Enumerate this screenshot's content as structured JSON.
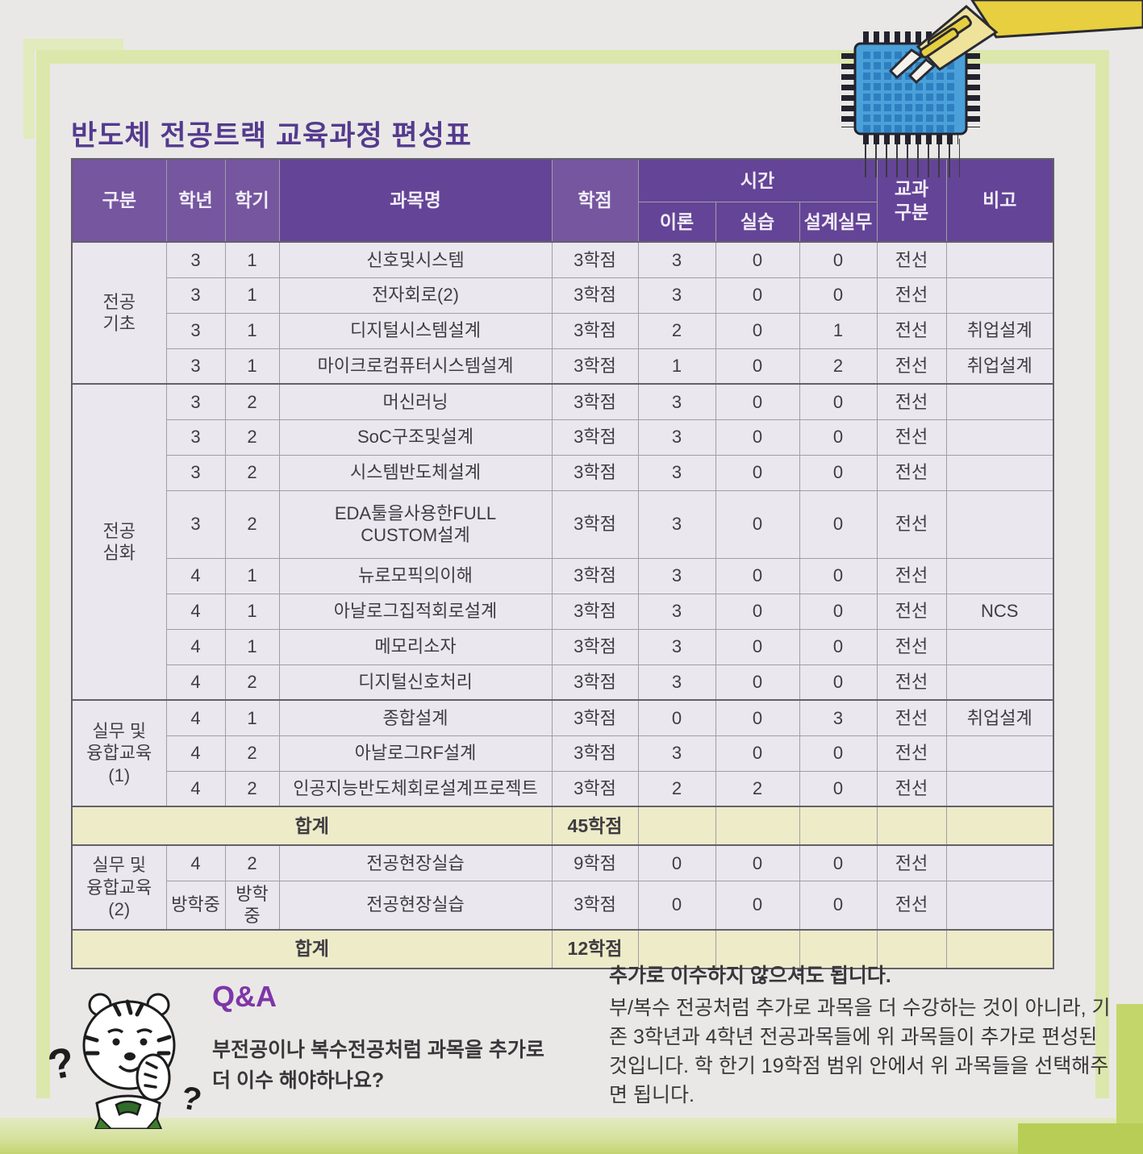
{
  "page": {
    "title": "반도체 전공트랙 교육과정 편성표"
  },
  "colors": {
    "header_purple": "#644496",
    "header_purple_light": "#75569f",
    "title_purple": "#533a8e",
    "qa_purple": "#7e36a8",
    "frame_green": "#dce7ac",
    "total_row_cream": "#eeebc9",
    "chip_blue": "#4aa0d8",
    "arm_yellow": "#e7cf3f"
  },
  "illustrations": {
    "chip": "microchip-with-robot-arm-illustration",
    "mascot": "tiger-mascot-with-question-marks"
  },
  "table": {
    "headers": {
      "category": "구분",
      "year": "학년",
      "semester": "학기",
      "course": "과목명",
      "credits": "학점",
      "hours": "시간",
      "theory": "이론",
      "practice": "실습",
      "design": "설계실무",
      "course_type": "교과\n구분",
      "note": "비고"
    },
    "sections": [
      {
        "kind": "group",
        "category": "전공\n기초",
        "rows": [
          {
            "year": "3",
            "semester": "1",
            "course": "신호및시스템",
            "credits": "3학점",
            "theory": "3",
            "practice": "0",
            "design": "0",
            "type": "전선",
            "note": ""
          },
          {
            "year": "3",
            "semester": "1",
            "course": "전자회로(2)",
            "credits": "3학점",
            "theory": "3",
            "practice": "0",
            "design": "0",
            "type": "전선",
            "note": ""
          },
          {
            "year": "3",
            "semester": "1",
            "course": "디지털시스템설계",
            "credits": "3학점",
            "theory": "2",
            "practice": "0",
            "design": "1",
            "type": "전선",
            "note": "취업설계"
          },
          {
            "year": "3",
            "semester": "1",
            "course": "마이크로컴퓨터시스템설계",
            "credits": "3학점",
            "theory": "1",
            "practice": "0",
            "design": "2",
            "type": "전선",
            "note": "취업설계"
          }
        ]
      },
      {
        "kind": "group",
        "category": "전공\n심화",
        "rows": [
          {
            "year": "3",
            "semester": "2",
            "course": "머신러닝",
            "credits": "3학점",
            "theory": "3",
            "practice": "0",
            "design": "0",
            "type": "전선",
            "note": ""
          },
          {
            "year": "3",
            "semester": "2",
            "course": "SoC구조및설계",
            "credits": "3학점",
            "theory": "3",
            "practice": "0",
            "design": "0",
            "type": "전선",
            "note": ""
          },
          {
            "year": "3",
            "semester": "2",
            "course": "시스템반도체설계",
            "credits": "3학점",
            "theory": "3",
            "practice": "0",
            "design": "0",
            "type": "전선",
            "note": ""
          },
          {
            "year": "3",
            "semester": "2",
            "course": "EDA툴을사용한FULL\nCUSTOM설계",
            "credits": "3학점",
            "theory": "3",
            "practice": "0",
            "design": "0",
            "type": "전선",
            "note": "",
            "tall": true
          },
          {
            "year": "4",
            "semester": "1",
            "course": "뉴로모픽의이해",
            "credits": "3학점",
            "theory": "3",
            "practice": "0",
            "design": "0",
            "type": "전선",
            "note": ""
          },
          {
            "year": "4",
            "semester": "1",
            "course": "아날로그집적회로설계",
            "credits": "3학점",
            "theory": "3",
            "practice": "0",
            "design": "0",
            "type": "전선",
            "note": "NCS"
          },
          {
            "year": "4",
            "semester": "1",
            "course": "메모리소자",
            "credits": "3학점",
            "theory": "3",
            "practice": "0",
            "design": "0",
            "type": "전선",
            "note": ""
          },
          {
            "year": "4",
            "semester": "2",
            "course": "디지털신호처리",
            "credits": "3학점",
            "theory": "3",
            "practice": "0",
            "design": "0",
            "type": "전선",
            "note": ""
          }
        ]
      },
      {
        "kind": "group",
        "category": "실무 및\n융합교육\n(1)",
        "rows": [
          {
            "year": "4",
            "semester": "1",
            "course": "종합설계",
            "credits": "3학점",
            "theory": "0",
            "practice": "0",
            "design": "3",
            "type": "전선",
            "note": "취업설계"
          },
          {
            "year": "4",
            "semester": "2",
            "course": "아날로그RF설계",
            "credits": "3학점",
            "theory": "3",
            "practice": "0",
            "design": "0",
            "type": "전선",
            "note": ""
          },
          {
            "year": "4",
            "semester": "2",
            "course": "인공지능반도체회로설계프로젝트",
            "credits": "3학점",
            "theory": "2",
            "practice": "2",
            "design": "0",
            "type": "전선",
            "note": ""
          }
        ]
      },
      {
        "kind": "total",
        "label": "합계",
        "credits": "45학점"
      },
      {
        "kind": "group",
        "category": "실무 및\n융합교육\n(2)",
        "rows": [
          {
            "year": "4",
            "semester": "2",
            "course": "전공현장실습",
            "credits": "9학점",
            "theory": "0",
            "practice": "0",
            "design": "0",
            "type": "전선",
            "note": ""
          },
          {
            "year": "방학중",
            "semester": "방학중",
            "course": "전공현장실습",
            "credits": "3학점",
            "theory": "0",
            "practice": "0",
            "design": "0",
            "type": "전선",
            "note": ""
          }
        ]
      },
      {
        "kind": "total",
        "label": "합계",
        "credits": "12학점"
      }
    ]
  },
  "qa": {
    "heading": "Q&A",
    "question": "부전공이나 복수전공처럼 과목을 추가로\n더 이수 해야하나요?",
    "answer_title": "추가로 이수하지 않으셔도 됩니다.",
    "answer_body": "부/복수 전공처럼 추가로 과목을 더 수강하는 것이 아니라, 기존 3학년과 4학년 전공과목들에 위 과목들이 추가로 편성된 것입니다. 학 한기 19학점 범위 안에서 위 과목들을 선택해주면 됩니다."
  }
}
